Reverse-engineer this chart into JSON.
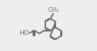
{
  "bg_color": "#eeeeee",
  "line_color": "#686868",
  "text_color": "#686868",
  "line_width": 1.4,
  "fig_width": 1.37,
  "fig_height": 0.73,
  "dpi": 100,
  "scale": 0.115,
  "font_size": 6.5
}
